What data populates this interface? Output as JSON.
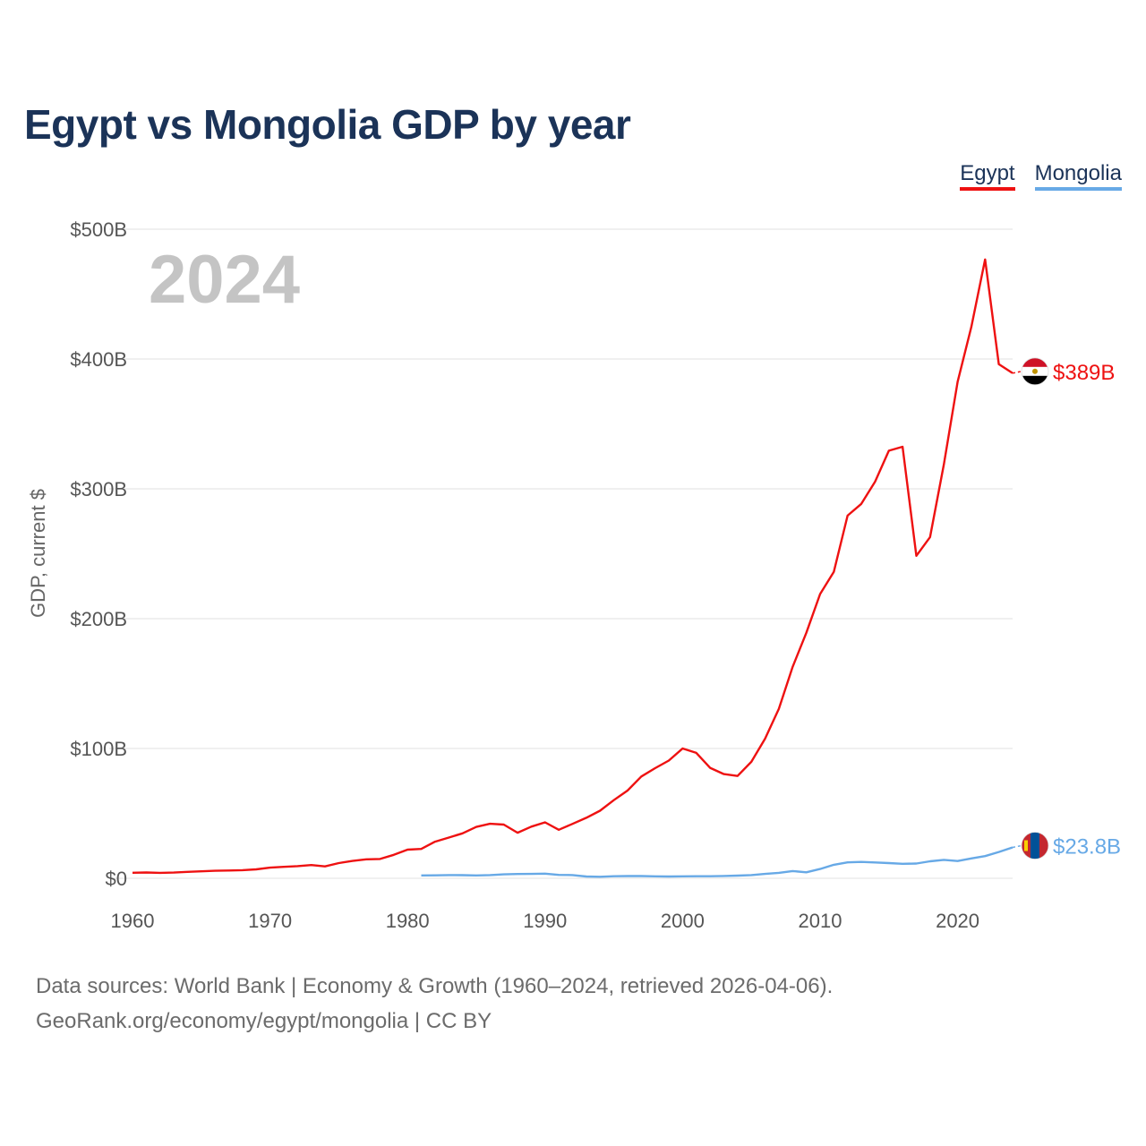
{
  "title": "Egypt vs Mongolia GDP by year",
  "legend": [
    {
      "label": "Egypt",
      "color": "#ee1111"
    },
    {
      "label": "Mongolia",
      "color": "#67a9e6"
    }
  ],
  "source": {
    "line1": "Data sources: World Bank | Economy & Growth (1960–2024, retrieved 2026-04-06).",
    "line2": "GeoRank.org/economy/egypt/mongolia | CC BY"
  },
  "chart_data": {
    "type": "line",
    "title": "Egypt vs Mongolia GDP by year",
    "xlabel": "",
    "ylabel": "GDP, current $",
    "xlim": [
      1960,
      2024
    ],
    "ylim": [
      0,
      500
    ],
    "x_ticks": [
      1960,
      1970,
      1980,
      1990,
      2000,
      2010,
      2020
    ],
    "x_tick_labels": [
      "1960",
      "1970",
      "1980",
      "1990",
      "2000",
      "2010",
      "2020"
    ],
    "y_ticks": [
      0,
      100,
      200,
      300,
      400,
      500
    ],
    "y_tick_labels": [
      "$0",
      "$100B",
      "$200B",
      "$300B",
      "$400B",
      "$500B"
    ],
    "grid": true,
    "year_label": "2024",
    "series": [
      {
        "name": "Egypt",
        "color": "#ee1111",
        "end_label": "$389B",
        "flag_colors": [
          "#ce1126",
          "#ffffff",
          "#000000"
        ],
        "x": [
          1960,
          1961,
          1962,
          1963,
          1964,
          1965,
          1966,
          1967,
          1968,
          1969,
          1970,
          1971,
          1972,
          1973,
          1974,
          1975,
          1976,
          1977,
          1978,
          1979,
          1980,
          1981,
          1982,
          1983,
          1984,
          1985,
          1986,
          1987,
          1988,
          1989,
          1990,
          1991,
          1992,
          1993,
          1994,
          1995,
          1996,
          1997,
          1998,
          1999,
          2000,
          2001,
          2002,
          2003,
          2004,
          2005,
          2006,
          2007,
          2008,
          2009,
          2010,
          2011,
          2012,
          2013,
          2014,
          2015,
          2016,
          2017,
          2018,
          2019,
          2020,
          2021,
          2022,
          2023,
          2024
        ],
        "values": [
          4.3,
          4.5,
          4.2,
          4.4,
          5.0,
          5.4,
          5.8,
          6.0,
          6.3,
          6.9,
          8.2,
          8.8,
          9.4,
          10.2,
          9.2,
          11.7,
          13.4,
          14.6,
          14.9,
          18.1,
          22.1,
          22.6,
          28.2,
          31.4,
          34.6,
          39.6,
          42.0,
          41.4,
          35.1,
          39.8,
          43.1,
          37.4,
          41.9,
          46.6,
          52.1,
          60.2,
          67.6,
          78.4,
          84.8,
          90.7,
          100.0,
          96.6,
          85.1,
          80.3,
          78.8,
          89.7,
          107.5,
          130.5,
          162.8,
          189.1,
          219.0,
          236.0,
          279.4,
          288.4,
          305.5,
          329.4,
          332.4,
          248.4,
          262.8,
          318.7,
          382.5,
          424.7,
          476.7,
          396.0,
          389.1
        ]
      },
      {
        "name": "Mongolia",
        "color": "#67a9e6",
        "end_label": "$23.8B",
        "flag_colors": [
          "#c4272f",
          "#015197"
        ],
        "x": [
          1981,
          1982,
          1983,
          1984,
          1985,
          1986,
          1987,
          1988,
          1989,
          1990,
          1991,
          1992,
          1993,
          1994,
          1995,
          1996,
          1997,
          1998,
          1999,
          2000,
          2001,
          2002,
          2003,
          2004,
          2005,
          2006,
          2007,
          2008,
          2009,
          2010,
          2011,
          2012,
          2013,
          2014,
          2015,
          2016,
          2017,
          2018,
          2019,
          2020,
          2021,
          2022,
          2023,
          2024
        ],
        "values": [
          2.2,
          2.3,
          2.5,
          2.4,
          2.2,
          2.5,
          3.0,
          3.3,
          3.4,
          3.6,
          2.6,
          2.5,
          1.4,
          1.2,
          1.6,
          1.7,
          1.7,
          1.5,
          1.4,
          1.5,
          1.6,
          1.6,
          1.8,
          2.1,
          2.5,
          3.4,
          4.2,
          5.6,
          4.6,
          7.2,
          10.4,
          12.3,
          12.6,
          12.2,
          11.7,
          11.2,
          11.4,
          13.1,
          14.2,
          13.3,
          15.3,
          17.1,
          20.3,
          23.8
        ]
      }
    ]
  }
}
